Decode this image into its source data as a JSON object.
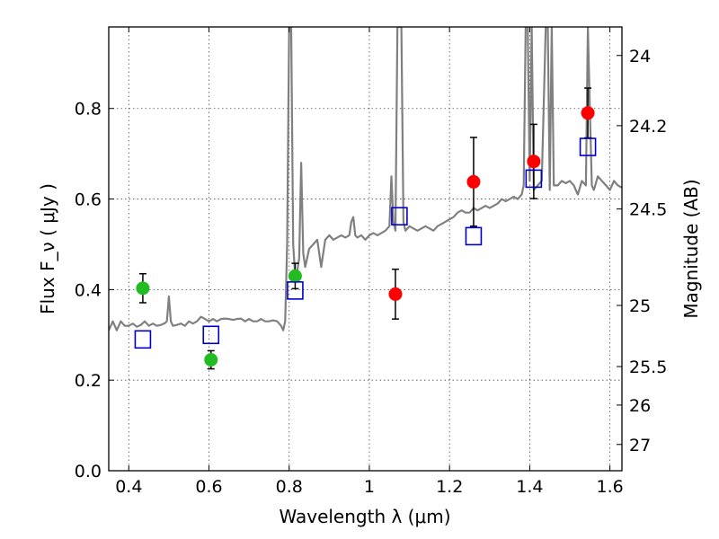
{
  "chart_data": {
    "type": "scatter",
    "xlabel": "Wavelength  λ (μm)",
    "ylabel": "Flux  F_ν  ( μJy )",
    "ylabel_right": "Magnitude (AB)",
    "xlim": [
      0.35,
      1.63
    ],
    "ylim": [
      0.0,
      0.98
    ],
    "grid": true,
    "x_ticks": [
      0.4,
      0.6,
      0.8,
      1.0,
      1.2,
      1.4,
      1.6
    ],
    "x_tick_labels": [
      "0.4",
      "0.6",
      "0.8",
      "1",
      "1.2",
      "1.4",
      "1.6"
    ],
    "y_ticks": [
      0.0,
      0.2,
      0.4,
      0.6,
      0.8
    ],
    "y_tick_labels": [
      "0.0",
      "0.2",
      "0.4",
      "0.6",
      "0.8"
    ],
    "right_axis": {
      "labels": [
        "24",
        "24.2",
        "24.5",
        "25",
        "25.5",
        "26",
        "27"
      ],
      "flux_positions": [
        0.917,
        0.762,
        0.578,
        0.365,
        0.23,
        0.145,
        0.058
      ]
    },
    "spectrum": {
      "color": "#808080",
      "x": [
        0.35,
        0.36,
        0.37,
        0.38,
        0.39,
        0.4,
        0.41,
        0.42,
        0.43,
        0.44,
        0.45,
        0.46,
        0.47,
        0.48,
        0.49,
        0.495,
        0.5,
        0.505,
        0.51,
        0.52,
        0.53,
        0.54,
        0.55,
        0.56,
        0.57,
        0.58,
        0.59,
        0.6,
        0.61,
        0.62,
        0.63,
        0.64,
        0.65,
        0.66,
        0.67,
        0.68,
        0.69,
        0.7,
        0.71,
        0.72,
        0.73,
        0.74,
        0.75,
        0.76,
        0.77,
        0.78,
        0.785,
        0.79,
        0.795,
        0.8,
        0.805,
        0.81,
        0.815,
        0.82,
        0.825,
        0.83,
        0.835,
        0.84,
        0.85,
        0.86,
        0.87,
        0.88,
        0.89,
        0.9,
        0.91,
        0.92,
        0.93,
        0.94,
        0.95,
        0.955,
        0.96,
        0.965,
        0.97,
        0.98,
        0.99,
        1.0,
        1.01,
        1.02,
        1.03,
        1.04,
        1.05,
        1.055,
        1.06,
        1.065,
        1.07,
        1.075,
        1.08,
        1.085,
        1.09,
        1.1,
        1.11,
        1.12,
        1.13,
        1.14,
        1.15,
        1.16,
        1.17,
        1.18,
        1.19,
        1.2,
        1.21,
        1.22,
        1.23,
        1.24,
        1.25,
        1.26,
        1.27,
        1.28,
        1.29,
        1.3,
        1.31,
        1.32,
        1.33,
        1.34,
        1.35,
        1.36,
        1.37,
        1.38,
        1.385,
        1.39,
        1.395,
        1.4,
        1.405,
        1.41,
        1.42,
        1.43,
        1.44,
        1.445,
        1.45,
        1.455,
        1.46,
        1.47,
        1.48,
        1.49,
        1.5,
        1.51,
        1.52,
        1.53,
        1.54,
        1.545,
        1.55,
        1.555,
        1.56,
        1.57,
        1.58,
        1.59,
        1.6,
        1.61,
        1.62,
        1.63
      ],
      "y": [
        0.31,
        0.33,
        0.31,
        0.33,
        0.32,
        0.32,
        0.325,
        0.318,
        0.322,
        0.33,
        0.32,
        0.325,
        0.32,
        0.322,
        0.326,
        0.33,
        0.385,
        0.33,
        0.32,
        0.322,
        0.325,
        0.32,
        0.33,
        0.325,
        0.33,
        0.34,
        0.335,
        0.33,
        0.335,
        0.33,
        0.335,
        0.336,
        0.335,
        0.333,
        0.335,
        0.336,
        0.33,
        0.335,
        0.33,
        0.33,
        0.335,
        0.33,
        0.33,
        0.332,
        0.33,
        0.32,
        0.31,
        0.33,
        0.5,
        0.98,
        0.98,
        0.5,
        0.43,
        0.44,
        0.47,
        0.68,
        0.48,
        0.45,
        0.49,
        0.5,
        0.51,
        0.45,
        0.51,
        0.52,
        0.51,
        0.515,
        0.52,
        0.515,
        0.52,
        0.55,
        0.56,
        0.52,
        0.515,
        0.52,
        0.51,
        0.52,
        0.525,
        0.52,
        0.525,
        0.53,
        0.54,
        0.65,
        0.55,
        0.53,
        0.98,
        0.98,
        0.98,
        0.55,
        0.53,
        0.54,
        0.535,
        0.53,
        0.535,
        0.54,
        0.535,
        0.53,
        0.54,
        0.545,
        0.55,
        0.555,
        0.56,
        0.57,
        0.575,
        0.57,
        0.57,
        0.58,
        0.575,
        0.58,
        0.585,
        0.58,
        0.585,
        0.59,
        0.6,
        0.595,
        0.6,
        0.605,
        0.6,
        0.61,
        0.63,
        0.98,
        0.98,
        0.64,
        0.98,
        0.62,
        0.63,
        0.64,
        0.98,
        0.98,
        0.62,
        0.98,
        0.63,
        0.63,
        0.64,
        0.635,
        0.64,
        0.63,
        0.61,
        0.64,
        0.63,
        0.98,
        0.8,
        0.63,
        0.62,
        0.65,
        0.64,
        0.63,
        0.62,
        0.64,
        0.63,
        0.625
      ]
    },
    "series": [
      {
        "color": "#22bb22",
        "marker": "circle",
        "x": [
          0.435,
          0.605,
          0.815
        ],
        "y": [
          0.403,
          0.245,
          0.43
        ],
        "yerr": [
          0.032,
          0.02,
          0.028
        ]
      },
      {
        "color": "#ff0000",
        "marker": "circle",
        "x": [
          1.065,
          1.26,
          1.41,
          1.545
        ],
        "y": [
          0.39,
          0.638,
          0.683,
          0.79
        ],
        "yerr": [
          0.055,
          0.098,
          0.082,
          0.055
        ]
      },
      {
        "color": "#0000cc",
        "marker": "open-square",
        "x": [
          0.435,
          0.605,
          0.815,
          1.075,
          1.26,
          1.41,
          1.545
        ],
        "y": [
          0.29,
          0.3,
          0.398,
          0.562,
          0.518,
          0.645,
          0.715
        ]
      }
    ]
  }
}
